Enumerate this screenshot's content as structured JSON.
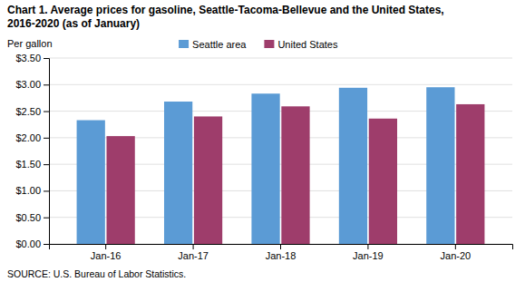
{
  "chart_data": {
    "type": "bar",
    "title": "Chart 1. Average prices for gasoline, Seattle-Tacoma-Bellevue and the United States,",
    "subtitle": "2016-2020  (as of January)",
    "ylabel": "Per gallon",
    "annotations": [
      "SOURCE: U.S. Bureau of Labor Statistics."
    ],
    "categories": [
      "Jan-16",
      "Jan-17",
      "Jan-18",
      "Jan-19",
      "Jan-20"
    ],
    "series": [
      {
        "name": "Seattle area",
        "color": "#5B9BD5",
        "values": [
          2.33,
          2.68,
          2.83,
          2.94,
          2.95
        ]
      },
      {
        "name": "United States",
        "color": "#9E3D6B",
        "values": [
          2.03,
          2.4,
          2.59,
          2.36,
          2.63
        ]
      }
    ],
    "ylim": [
      0,
      3.5
    ],
    "yticks": [
      {
        "value": 0.0,
        "label": "$0.00"
      },
      {
        "value": 0.5,
        "label": "$0.50"
      },
      {
        "value": 1.0,
        "label": "$1.00"
      },
      {
        "value": 1.5,
        "label": "$1.50"
      },
      {
        "value": 2.0,
        "label": "$2.00"
      },
      {
        "value": 2.5,
        "label": "$2.50"
      },
      {
        "value": 3.0,
        "label": "$3.00"
      },
      {
        "value": 3.5,
        "label": "$3.50"
      }
    ],
    "grid": true,
    "legend": "top"
  }
}
